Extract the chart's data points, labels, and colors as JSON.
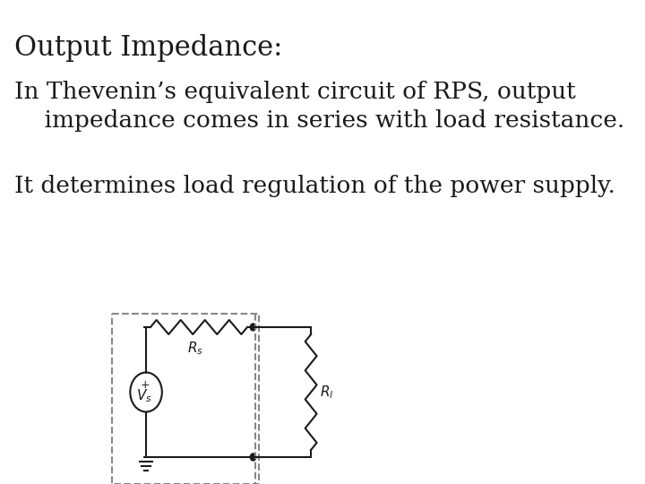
{
  "title": "Output Impedance:",
  "line1": "In Thevenin’s equivalent circuit of RPS, output",
  "line2": "    impedance comes in series with load resistance.",
  "line3": "It determines load regulation of the power supply.",
  "bg_color": "#ffffff",
  "text_color": "#1a1a1a",
  "title_fontsize": 22,
  "body_fontsize": 19,
  "circuit_color": "#1a1a1a",
  "dashed_color": "#888888"
}
